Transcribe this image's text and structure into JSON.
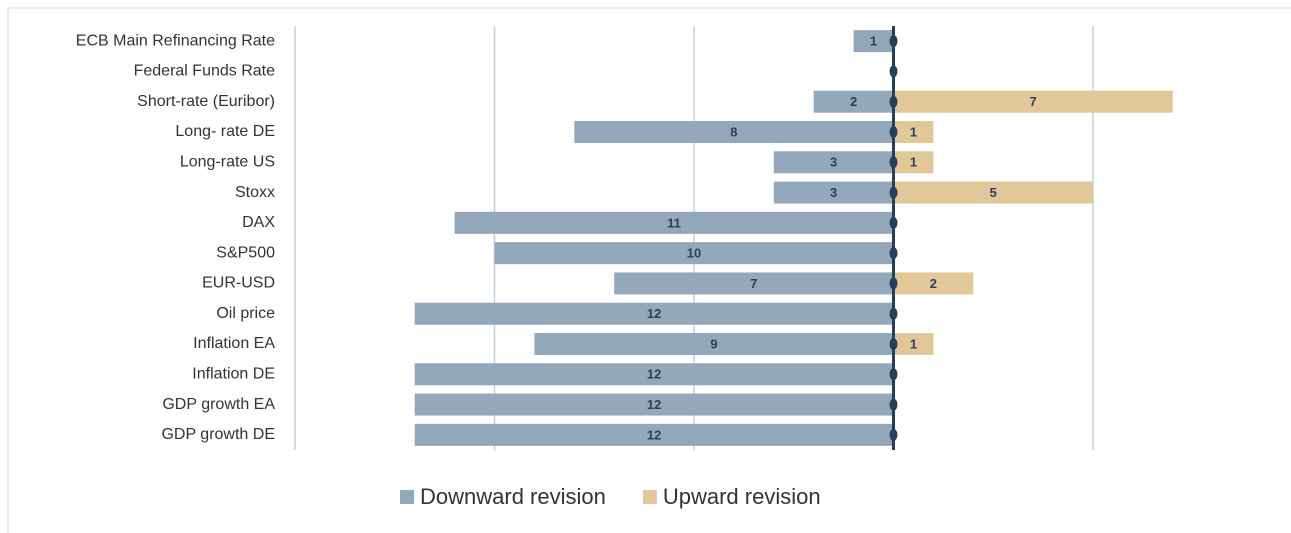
{
  "chart_data": {
    "type": "diverging-bar",
    "categories": [
      "ECB Main Refinancing Rate",
      "Federal Funds Rate",
      "Short-rate (Euribor)",
      "Long- rate DE",
      "Long-rate US",
      "Stoxx",
      "DAX",
      "S&P500",
      "EUR-USD",
      "Oil price",
      "Inflation EA",
      "Inflation DE",
      "GDP growth EA",
      "GDP growth DE"
    ],
    "series": [
      {
        "name": "Downward revision",
        "color": "#94a8bb",
        "values": [
          -1,
          null,
          -2,
          -8,
          -3,
          -3,
          -11,
          -10,
          -7,
          -12,
          -9,
          -12,
          -12,
          -12
        ],
        "value_labels": [
          "1",
          null,
          "2",
          "8",
          "3",
          "3",
          "11",
          "10",
          "7",
          "12",
          "9",
          "12",
          "12",
          "12"
        ]
      },
      {
        "name": "Upward revision",
        "color": "#e2c799",
        "values": [
          null,
          null,
          7,
          1,
          1,
          5,
          null,
          null,
          2,
          null,
          1,
          null,
          null,
          null
        ],
        "value_labels": [
          null,
          null,
          "7",
          "1",
          "1",
          "5",
          null,
          null,
          "2",
          null,
          "1",
          null,
          null,
          null
        ]
      }
    ],
    "xlim": [
      -15,
      5
    ],
    "xticks": [
      -15,
      -10,
      -5,
      0,
      5
    ],
    "grid": true,
    "legend": "bottom"
  }
}
